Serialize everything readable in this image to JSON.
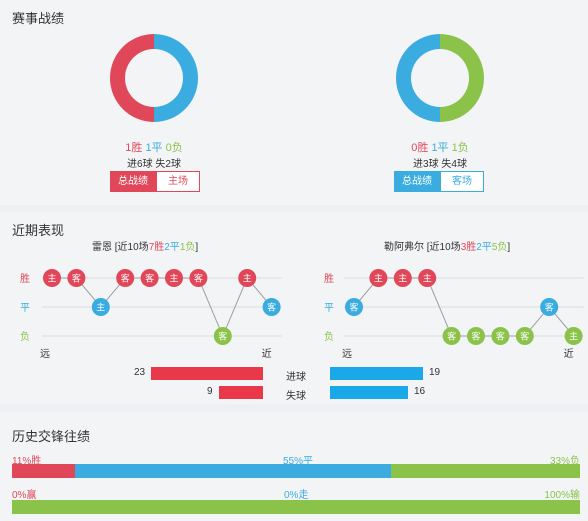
{
  "sections": {
    "record_title": "赛事战绩",
    "recent_title": "近期表现",
    "history_title": "历史交锋往绩"
  },
  "left_team": {
    "donut": {
      "win": 1,
      "draw": 1,
      "loss": 0
    },
    "record": {
      "win_text": "1胜",
      "draw_text": "1平",
      "loss_text": "0负"
    },
    "goals_text": "进6球  失2球",
    "btn_total": "总战绩",
    "btn_venue": "主场",
    "name": "雷恩",
    "summary_prefix": "[近10场",
    "summary_win": "7胜",
    "summary_draw": "2平",
    "summary_loss": "1负",
    "summary_suffix": "]",
    "form": [
      {
        "label": "主",
        "result": "W"
      },
      {
        "label": "客",
        "result": "W"
      },
      {
        "label": "主",
        "result": "D"
      },
      {
        "label": "客",
        "result": "W"
      },
      {
        "label": "客",
        "result": "W"
      },
      {
        "label": "主",
        "result": "W"
      },
      {
        "label": "客",
        "result": "W"
      },
      {
        "label": "客",
        "result": "L"
      },
      {
        "label": "主",
        "result": "W"
      },
      {
        "label": "客",
        "result": "D"
      }
    ],
    "goals_for": 23,
    "goals_against": 9
  },
  "right_team": {
    "donut": {
      "win": 0,
      "draw": 1,
      "loss": 1
    },
    "record": {
      "win_text": "0胜",
      "draw_text": "1平",
      "loss_text": "1负"
    },
    "goals_text": "进3球  失4球",
    "btn_total": "总战绩",
    "btn_venue": "客场",
    "name": "勒阿弗尔",
    "summary_prefix": "[近10场",
    "summary_win": "3胜",
    "summary_draw": "2平",
    "summary_loss": "5负",
    "summary_suffix": "]",
    "form": [
      {
        "label": "客",
        "result": "D"
      },
      {
        "label": "主",
        "result": "W"
      },
      {
        "label": "主",
        "result": "W"
      },
      {
        "label": "主",
        "result": "W"
      },
      {
        "label": "客",
        "result": "L"
      },
      {
        "label": "客",
        "result": "L"
      },
      {
        "label": "客",
        "result": "L"
      },
      {
        "label": "客",
        "result": "L"
      },
      {
        "label": "客",
        "result": "D"
      },
      {
        "label": "主",
        "result": "L"
      }
    ],
    "goals_for": 19,
    "goals_against": 16
  },
  "axis_labels": {
    "win": "胜",
    "draw": "平",
    "loss": "负",
    "far": "远",
    "near": "近"
  },
  "stat_labels": {
    "scored": "进球",
    "conceded": "失球"
  },
  "history": {
    "win_pct_text": "11%胜",
    "draw_pct_text": "55%平",
    "loss_pct_text": "33%负",
    "win_pct": 11,
    "draw_pct": 55,
    "loss_pct": 33,
    "handicap_win_text": "0%赢",
    "handicap_draw_text": "0%走",
    "handicap_loss_text": "100%输",
    "handicap_win_pct": 0,
    "handicap_draw_pct": 0,
    "handicap_loss_pct": 100
  },
  "colors": {
    "win": "#e0485a",
    "draw": "#3aace0",
    "loss": "#8bc34a",
    "goal_bar_left": "#e8384a",
    "goal_bar_right": "#1aa8e8"
  }
}
